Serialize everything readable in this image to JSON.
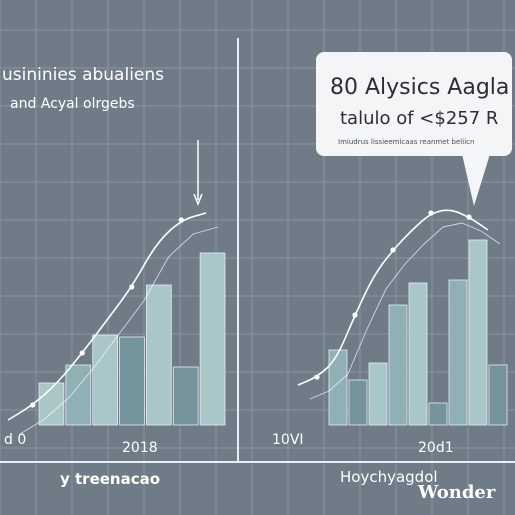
{
  "colors": {
    "background": "#6f7c88",
    "grid": "#8895a1",
    "bar_light": "#a9c6c9",
    "bar_mid": "#8fb0b5",
    "bar_dark": "#75939a",
    "line": "#ffffff",
    "divider": "#e9eef2",
    "callout_bg": "#f3f5f7",
    "callout_text": "#2a2f34"
  },
  "chart_data": [
    {
      "type": "bar",
      "title": "usininies abualiens",
      "subtitle": "and Acyal olrgebs",
      "x_tick_labels": [
        "d 0",
        "2018"
      ],
      "footer": "y treenacao",
      "bars": [
        {
          "value": 42,
          "tone": "light"
        },
        {
          "value": 60,
          "tone": "mid"
        },
        {
          "value": 90,
          "tone": "light"
        },
        {
          "value": 88,
          "tone": "dark"
        },
        {
          "value": 140,
          "tone": "light"
        },
        {
          "value": 58,
          "tone": "dark"
        },
        {
          "value": 172,
          "tone": "light"
        }
      ],
      "trend_line": [
        5,
        20,
        42,
        72,
        105,
        138,
        182,
        205,
        212
      ],
      "ylim": [
        0,
        230
      ]
    },
    {
      "type": "bar",
      "x_tick_labels": [
        "10VI",
        "20d1"
      ],
      "footer": "Hoychyagdol",
      "bars": [
        {
          "value": 75,
          "tone": "mid"
        },
        {
          "value": 45,
          "tone": "dark"
        },
        {
          "value": 62,
          "tone": "light"
        },
        {
          "value": 120,
          "tone": "mid"
        },
        {
          "value": 142,
          "tone": "light"
        },
        {
          "value": 22,
          "tone": "dark"
        },
        {
          "value": 145,
          "tone": "mid"
        },
        {
          "value": 185,
          "tone": "light"
        },
        {
          "value": 60,
          "tone": "dark"
        }
      ],
      "trend_line": [
        40,
        48,
        65,
        110,
        150,
        175,
        195,
        212,
        216,
        208,
        195
      ],
      "ylim": [
        0,
        230
      ]
    }
  ],
  "callout": {
    "title": "80 Alysics Aagla",
    "value": "talulo of <$257 R",
    "note": "Imiudrus lissieemicaas reanmet beliicn"
  },
  "watermark": "Wonder"
}
